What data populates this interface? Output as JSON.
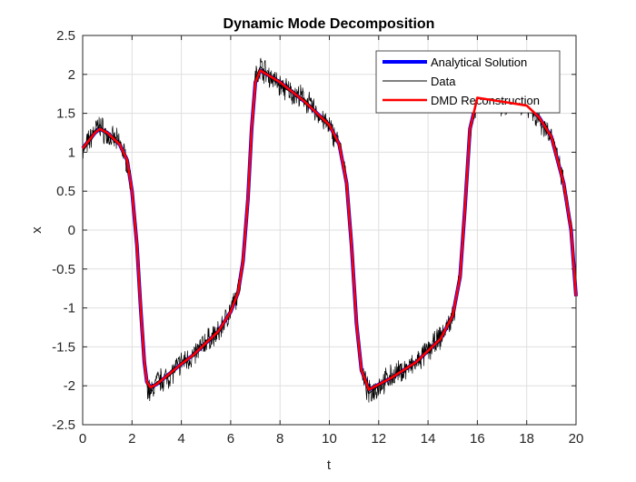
{
  "chart_data": {
    "type": "line",
    "title": "Dynamic Mode Decomposition",
    "xlabel": "t",
    "ylabel": "x",
    "xlim": [
      0,
      20
    ],
    "ylim": [
      -2.5,
      2.5
    ],
    "xticks": [
      0,
      2,
      4,
      6,
      8,
      10,
      12,
      14,
      16,
      18,
      20
    ],
    "xtick_labels": [
      "0",
      "2",
      "4",
      "6",
      "8",
      "10",
      "12",
      "14",
      "16",
      "18",
      "20"
    ],
    "yticks": [
      -2.5,
      -2,
      -1.5,
      -1,
      -0.5,
      0,
      0.5,
      1,
      1.5,
      2,
      2.5
    ],
    "ytick_labels": [
      "-2.5",
      "-2",
      "-1.5",
      "-1",
      "-0.5",
      "0",
      "0.5",
      "1",
      "1.5",
      "2",
      "2.5"
    ],
    "grid": true,
    "legend_position": "top-right",
    "series": [
      {
        "name": "Analytical Solution",
        "color": "#0000ff",
        "x": [
          0,
          0.5,
          0.7,
          1,
          1.5,
          1.8,
          2.0,
          2.2,
          2.35,
          2.5,
          2.6,
          2.75,
          3.0,
          3.5,
          4.0,
          4.5,
          5.0,
          5.5,
          6.0,
          6.3,
          6.5,
          6.7,
          6.85,
          7.0,
          7.2,
          8.0,
          9.0,
          10.0,
          10.4,
          10.7,
          10.9,
          11.1,
          11.3,
          11.6,
          12.5,
          13.5,
          14.5,
          15.0,
          15.3,
          15.5,
          15.7,
          16.0,
          17.0,
          18.0,
          18.5,
          19.0,
          19.5,
          19.8,
          20.0
        ],
        "y": [
          1.05,
          1.25,
          1.3,
          1.25,
          1.1,
          0.9,
          0.5,
          -0.2,
          -1.0,
          -1.7,
          -1.95,
          -2.02,
          -1.98,
          -1.85,
          -1.72,
          -1.6,
          -1.45,
          -1.3,
          -1.05,
          -0.8,
          -0.4,
          0.4,
          1.3,
          1.9,
          2.05,
          1.9,
          1.65,
          1.35,
          1.1,
          0.6,
          -0.2,
          -1.2,
          -1.8,
          -2.05,
          -1.9,
          -1.7,
          -1.4,
          -1.1,
          -0.6,
          0.3,
          1.3,
          1.7,
          1.65,
          1.6,
          1.45,
          1.2,
          0.6,
          0.0,
          -0.85
        ]
      },
      {
        "name": "Data",
        "color": "#000000",
        "x": [
          0,
          0.5,
          0.7,
          1,
          1.5,
          1.8,
          2.0,
          2.2,
          2.35,
          2.5,
          2.6,
          2.75,
          3.0,
          3.5,
          4.0,
          4.5,
          5.0,
          5.5,
          6.0,
          6.3,
          6.5,
          6.7,
          6.85,
          7.0,
          7.2,
          8.0,
          9.0,
          10.0,
          10.4,
          10.7,
          10.9,
          11.1,
          11.3,
          11.6,
          12.5,
          13.5,
          14.5,
          15.0,
          15.3,
          15.5,
          15.7,
          16.0,
          17.0,
          18.0,
          18.5,
          19.0,
          19.5,
          19.8,
          20.0
        ],
        "y": [
          1.0,
          1.28,
          1.35,
          1.2,
          1.12,
          0.88,
          0.52,
          -0.18,
          -1.02,
          -1.72,
          -1.98,
          -2.1,
          -1.95,
          -1.88,
          -1.7,
          -1.62,
          -1.42,
          -1.33,
          -1.02,
          -0.82,
          -0.38,
          0.42,
          1.28,
          1.95,
          2.1,
          1.85,
          1.68,
          1.32,
          1.12,
          0.58,
          -0.22,
          -1.18,
          -1.82,
          -2.1,
          -1.88,
          -1.72,
          -1.38,
          -1.12,
          -0.58,
          0.32,
          1.28,
          1.72,
          1.62,
          1.62,
          1.42,
          1.22,
          0.58,
          0.02,
          -0.85
        ]
      },
      {
        "name": "DMD Reconstruction",
        "color": "#ff0000",
        "x": [
          0,
          0.5,
          0.7,
          1,
          1.5,
          1.8,
          2.0,
          2.2,
          2.35,
          2.5,
          2.6,
          2.75,
          3.0,
          3.5,
          4.0,
          4.5,
          5.0,
          5.5,
          6.0,
          6.3,
          6.5,
          6.7,
          6.85,
          7.0,
          7.2,
          8.0,
          9.0,
          10.0,
          10.4,
          10.7,
          10.9,
          11.1,
          11.3,
          11.6,
          12.5,
          13.5,
          14.5,
          15.0,
          15.3,
          15.5,
          15.7,
          16.0,
          17.0,
          18.0,
          18.5,
          19.0,
          19.5,
          19.8,
          20.0
        ],
        "y": [
          1.05,
          1.25,
          1.3,
          1.25,
          1.1,
          0.9,
          0.5,
          -0.2,
          -1.0,
          -1.7,
          -1.95,
          -2.02,
          -1.98,
          -1.85,
          -1.72,
          -1.6,
          -1.45,
          -1.3,
          -1.05,
          -0.8,
          -0.4,
          0.4,
          1.3,
          1.9,
          2.05,
          1.9,
          1.65,
          1.35,
          1.1,
          0.6,
          -0.2,
          -1.2,
          -1.8,
          -2.05,
          -1.9,
          -1.7,
          -1.4,
          -1.1,
          -0.6,
          0.3,
          1.3,
          1.7,
          1.65,
          1.6,
          1.45,
          1.2,
          0.6,
          0.0,
          -0.85
        ]
      }
    ]
  }
}
